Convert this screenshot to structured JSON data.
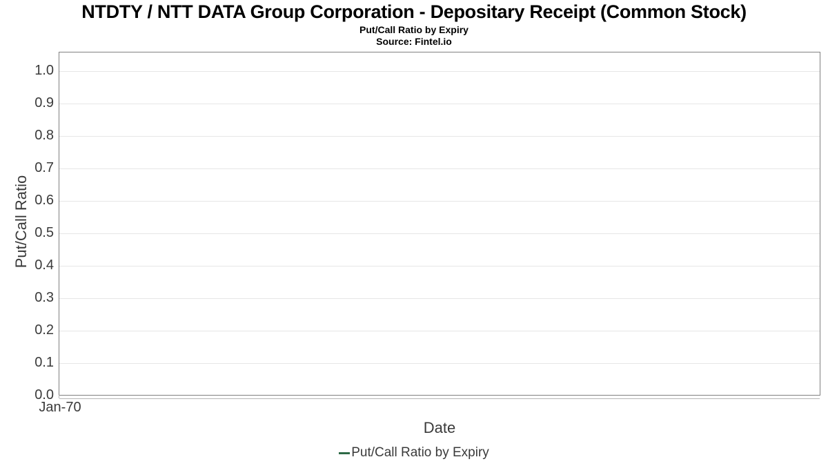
{
  "chart_data": {
    "type": "line",
    "title": "NTDTY / NTT DATA Group Corporation - Depositary Receipt (Common Stock)",
    "subtitle": "Put/Call Ratio by Expiry",
    "source": "Source: Fintel.io",
    "xlabel": "Date",
    "ylabel": "Put/Call Ratio",
    "x_tick_labels": [
      "Jan-70"
    ],
    "y_ticks": [
      0.0,
      0.1,
      0.2,
      0.3,
      0.4,
      0.5,
      0.6,
      0.7,
      0.8,
      0.9,
      1.0
    ],
    "ylim": [
      0,
      1.057
    ],
    "xlim_labels": [
      "Jan-70",
      "Jan-70"
    ],
    "grid": true,
    "legend_position": "bottom",
    "series": [
      {
        "name": "Put/Call Ratio by Expiry",
        "color": "#2d6946",
        "x": [],
        "values": []
      }
    ],
    "colors": {
      "title": "#000000",
      "plot_border": "#7f7f7f",
      "gridline": "#e6e6e6",
      "axis_subline": "#b5b5b5",
      "tick_label": "#3a3a3a",
      "legend_text": "#3a3a3a",
      "series_color": "#2d6946"
    }
  }
}
